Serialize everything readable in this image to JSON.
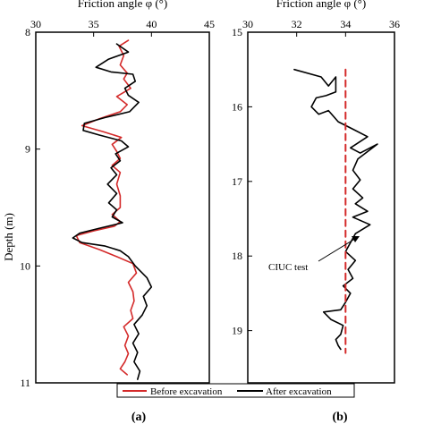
{
  "figure": {
    "y_axis_label": "Depth (m)",
    "panel_labels": [
      "(a)",
      "(b)"
    ],
    "legend": {
      "entries": [
        {
          "label": "Before excavation",
          "color": "#d42a2a"
        },
        {
          "label": "After excavation",
          "color": "#000000"
        }
      ]
    }
  },
  "chart_data": [
    {
      "type": "line",
      "panel": "a",
      "xlabel": "Friction angle φ (°)",
      "x_axis_position": "top",
      "xlim": [
        30,
        45
      ],
      "ylim": [
        8,
        11
      ],
      "y_inverted": true,
      "x_ticks": [
        30,
        35,
        40,
        45
      ],
      "y_ticks": [
        8,
        9,
        10,
        11
      ],
      "grid": false,
      "series": [
        {
          "name": "Before excavation",
          "color": "#d42a2a",
          "points": [
            [
              38.0,
              8.07
            ],
            [
              37.2,
              8.12
            ],
            [
              37.6,
              8.2
            ],
            [
              37.3,
              8.28
            ],
            [
              37.9,
              8.35
            ],
            [
              37.6,
              8.4
            ],
            [
              38.2,
              8.48
            ],
            [
              37.0,
              8.55
            ],
            [
              37.9,
              8.62
            ],
            [
              37.3,
              8.68
            ],
            [
              35.5,
              8.74
            ],
            [
              34.0,
              8.8
            ],
            [
              35.8,
              8.85
            ],
            [
              37.4,
              8.9
            ],
            [
              36.6,
              8.96
            ],
            [
              37.0,
              9.02
            ],
            [
              37.3,
              9.08
            ],
            [
              36.6,
              9.14
            ],
            [
              37.3,
              9.2
            ],
            [
              37.0,
              9.3
            ],
            [
              37.3,
              9.4
            ],
            [
              37.3,
              9.5
            ],
            [
              36.6,
              9.56
            ],
            [
              37.3,
              9.62
            ],
            [
              36.8,
              9.66
            ],
            [
              35.0,
              9.7
            ],
            [
              33.5,
              9.74
            ],
            [
              33.8,
              9.8
            ],
            [
              35.5,
              9.86
            ],
            [
              37.0,
              9.92
            ],
            [
              38.4,
              9.98
            ],
            [
              38.7,
              10.06
            ],
            [
              38.0,
              10.14
            ],
            [
              38.4,
              10.22
            ],
            [
              38.5,
              10.3
            ],
            [
              38.2,
              10.38
            ],
            [
              38.4,
              10.45
            ],
            [
              37.6,
              10.52
            ],
            [
              38.0,
              10.6
            ],
            [
              37.7,
              10.68
            ],
            [
              38.0,
              10.75
            ],
            [
              37.7,
              10.82
            ],
            [
              37.3,
              10.88
            ],
            [
              37.9,
              10.93
            ]
          ]
        },
        {
          "name": "After excavation",
          "color": "#000000",
          "points": [
            [
              37.0,
              8.1
            ],
            [
              38.0,
              8.17
            ],
            [
              36.3,
              8.23
            ],
            [
              35.2,
              8.3
            ],
            [
              36.5,
              8.34
            ],
            [
              38.4,
              8.36
            ],
            [
              38.6,
              8.42
            ],
            [
              37.7,
              8.48
            ],
            [
              38.0,
              8.54
            ],
            [
              38.9,
              8.6
            ],
            [
              38.1,
              8.68
            ],
            [
              36.0,
              8.73
            ],
            [
              34.2,
              8.78
            ],
            [
              34.1,
              8.84
            ],
            [
              35.5,
              8.88
            ],
            [
              37.4,
              8.93
            ],
            [
              38.0,
              8.98
            ],
            [
              36.9,
              9.04
            ],
            [
              37.3,
              9.1
            ],
            [
              36.5,
              9.16
            ],
            [
              37.0,
              9.22
            ],
            [
              36.2,
              9.3
            ],
            [
              37.0,
              9.38
            ],
            [
              36.3,
              9.46
            ],
            [
              37.0,
              9.52
            ],
            [
              36.6,
              9.58
            ],
            [
              37.5,
              9.63
            ],
            [
              35.4,
              9.68
            ],
            [
              33.8,
              9.72
            ],
            [
              33.2,
              9.76
            ],
            [
              34.0,
              9.8
            ],
            [
              36.0,
              9.83
            ],
            [
              37.3,
              9.87
            ],
            [
              38.0,
              9.92
            ],
            [
              38.6,
              10.0
            ],
            [
              39.6,
              10.1
            ],
            [
              40.0,
              10.18
            ],
            [
              39.3,
              10.26
            ],
            [
              39.6,
              10.34
            ],
            [
              39.2,
              10.42
            ],
            [
              38.5,
              10.5
            ],
            [
              38.9,
              10.58
            ],
            [
              38.4,
              10.66
            ],
            [
              38.8,
              10.74
            ],
            [
              38.5,
              10.82
            ],
            [
              39.0,
              10.9
            ],
            [
              38.8,
              10.97
            ]
          ]
        }
      ]
    },
    {
      "type": "line",
      "panel": "b",
      "xlabel": "Friction angle φ (°)",
      "x_axis_position": "top",
      "xlim": [
        30,
        36
      ],
      "ylim": [
        15,
        19.7
      ],
      "y_inverted": true,
      "x_ticks": [
        30,
        32,
        34,
        36
      ],
      "y_ticks": [
        15,
        16,
        17,
        18,
        19
      ],
      "grid": false,
      "annotation": {
        "text": "CIUC test",
        "arrow_to": [
          33.95,
          17.7
        ]
      },
      "series": [
        {
          "name": "After excavation",
          "color": "#000000",
          "points": [
            [
              31.9,
              15.5
            ],
            [
              33.0,
              15.6
            ],
            [
              33.3,
              15.72
            ],
            [
              33.6,
              15.6
            ],
            [
              33.6,
              15.8
            ],
            [
              33.2,
              15.85
            ],
            [
              32.8,
              15.88
            ],
            [
              32.6,
              16.0
            ],
            [
              32.9,
              16.1
            ],
            [
              33.3,
              16.05
            ],
            [
              33.7,
              16.2
            ],
            [
              34.3,
              16.3
            ],
            [
              34.9,
              16.4
            ],
            [
              34.2,
              16.55
            ],
            [
              34.6,
              16.62
            ],
            [
              35.3,
              16.5
            ],
            [
              34.5,
              16.7
            ],
            [
              34.3,
              16.85
            ],
            [
              34.6,
              16.98
            ],
            [
              34.3,
              17.1
            ],
            [
              34.7,
              17.22
            ],
            [
              34.4,
              17.3
            ],
            [
              34.9,
              17.4
            ],
            [
              34.3,
              17.48
            ],
            [
              35.0,
              17.58
            ],
            [
              34.4,
              17.7
            ],
            [
              34.2,
              17.82
            ],
            [
              34.0,
              17.94
            ],
            [
              34.4,
              18.06
            ],
            [
              34.1,
              18.18
            ],
            [
              34.3,
              18.3
            ],
            [
              33.9,
              18.4
            ],
            [
              34.2,
              18.5
            ],
            [
              34.0,
              18.62
            ],
            [
              33.8,
              18.72
            ],
            [
              33.1,
              18.75
            ],
            [
              33.4,
              18.85
            ],
            [
              33.9,
              18.93
            ],
            [
              33.8,
              19.05
            ],
            [
              33.6,
              19.12
            ],
            [
              33.7,
              19.2
            ],
            [
              33.8,
              19.25
            ]
          ]
        },
        {
          "name": "CIUC test",
          "color": "#d42a2a",
          "dashed": true,
          "points": [
            [
              34.0,
              15.5
            ],
            [
              34.0,
              19.3
            ]
          ]
        }
      ]
    }
  ]
}
